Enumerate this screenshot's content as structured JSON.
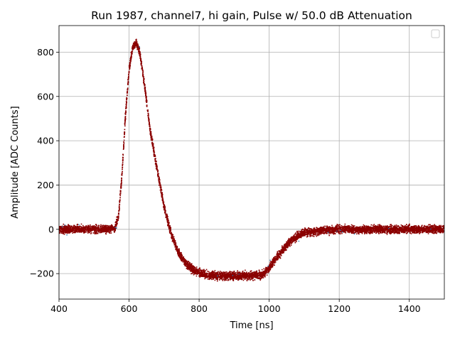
{
  "chart_data": {
    "type": "scatter",
    "title": "Run 1987, channel7, hi gain, Pulse w/ 50.0 dB Attenuation",
    "xlabel": "Time [ns]",
    "ylabel": "Amplitude [ADC Counts]",
    "xlim": [
      400,
      1500
    ],
    "ylim": [
      -315,
      920
    ],
    "xticks": [
      400,
      600,
      800,
      1000,
      1200,
      1400
    ],
    "yticks": [
      -200,
      0,
      200,
      400,
      600,
      800
    ],
    "grid": true,
    "legend": {
      "placement": "top-right",
      "entries": []
    },
    "series": [
      {
        "color": "#8b0000",
        "band_width": 50,
        "x": [
          400,
          450,
          500,
          540,
          560,
          570,
          580,
          590,
          600,
          610,
          620,
          630,
          640,
          650,
          660,
          680,
          700,
          720,
          740,
          760,
          780,
          800,
          820,
          850,
          880,
          900,
          950,
          980,
          1000,
          1020,
          1040,
          1060,
          1080,
          1100,
          1150,
          1200,
          1300,
          1400,
          1500
        ],
        "y": [
          0,
          0,
          0,
          0,
          5,
          60,
          250,
          520,
          720,
          820,
          845,
          800,
          700,
          580,
          450,
          270,
          100,
          -20,
          -100,
          -150,
          -180,
          -195,
          -205,
          -210,
          -210,
          -210,
          -210,
          -205,
          -175,
          -130,
          -90,
          -55,
          -30,
          -15,
          -5,
          0,
          0,
          0,
          0
        ]
      }
    ]
  }
}
